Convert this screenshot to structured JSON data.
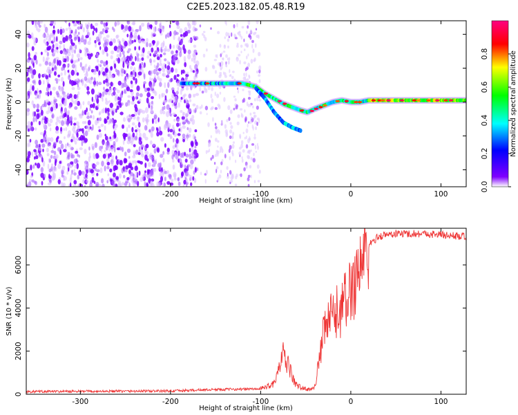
{
  "title": "C2E5.2023.182.05.48.R19",
  "chart_data": [
    {
      "type": "heatmap",
      "xlabel": "Height of straight line (km)",
      "ylabel": "Frequency (Hz)",
      "xlim": [
        -360,
        128
      ],
      "ylim": [
        -50,
        48
      ],
      "x_ticks": [
        -300,
        -200,
        -100,
        0,
        100
      ],
      "y_ticks": [
        -40,
        -20,
        0,
        20,
        40
      ],
      "colorbar": {
        "label": "Normalized spectral amplitude",
        "range": [
          0,
          1
        ],
        "ticks": [
          "0.0",
          "0.2",
          "0.4",
          "0.6",
          "0.8"
        ],
        "colormap": [
          "#ffffff",
          "#8000ff",
          "#0000ff",
          "#00ffff",
          "#00ff00",
          "#ffff00",
          "#ff0000",
          "#ff0080"
        ]
      },
      "ridge": {
        "x": [
          -188,
          -175,
          -160,
          -140,
          -120,
          -105,
          -95,
          -85,
          -75,
          -65,
          -55,
          -48,
          -40,
          -30,
          -20,
          -10,
          0,
          10,
          20,
          40,
          60,
          80,
          100,
          128
        ],
        "y": [
          11,
          11,
          11,
          11,
          11,
          9,
          5,
          2,
          -1,
          -3,
          -5,
          -6,
          -4,
          -2,
          0,
          1,
          0,
          0,
          1,
          1,
          1,
          1,
          1,
          1
        ]
      },
      "branch": {
        "x": [
          -105,
          -95,
          -85,
          -75,
          -65,
          -55
        ],
        "y": [
          8,
          2,
          -6,
          -12,
          -15,
          -17
        ]
      }
    },
    {
      "type": "line",
      "xlabel": "Height of straight line (km)",
      "ylabel": "SNR (10 * v/v)",
      "xlim": [
        -360,
        128
      ],
      "ylim": [
        0,
        7700
      ],
      "x_ticks": [
        -300,
        -200,
        -100,
        0,
        100
      ],
      "y_ticks": [
        0,
        2000,
        4000,
        6000
      ],
      "color": "#ee3333",
      "envelope": {
        "x": [
          -360,
          -200,
          -150,
          -100,
          -85,
          -75,
          -68,
          -62,
          -55,
          -50,
          -45,
          -40,
          -35,
          -30,
          -25,
          -20,
          -10,
          0,
          10,
          20,
          30,
          40,
          50,
          60,
          80,
          100,
          128
        ],
        "y": [
          120,
          150,
          220,
          250,
          500,
          1800,
          1200,
          500,
          300,
          250,
          200,
          400,
          1500,
          2800,
          3400,
          3600,
          4000,
          4800,
          6000,
          6900,
          7300,
          7400,
          7450,
          7450,
          7450,
          7400,
          7300
        ]
      }
    }
  ]
}
